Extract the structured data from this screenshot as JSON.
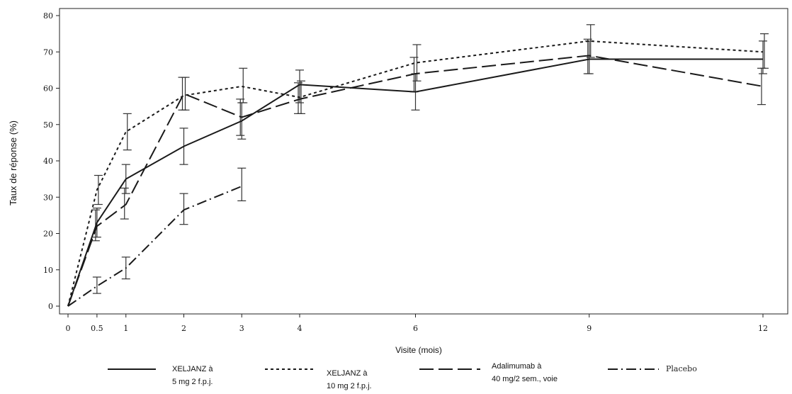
{
  "chart_data": {
    "type": "line",
    "title": "",
    "xlabel": "Visite (mois)",
    "ylabel": "Taux de réponse (%)",
    "xlim": [
      0,
      12.5
    ],
    "ylim": [
      0,
      80
    ],
    "x_ticks": [
      0,
      0.5,
      1,
      2,
      3,
      4,
      6,
      9,
      12
    ],
    "x_tick_labels": [
      "0",
      "0.5",
      "1",
      "2",
      "3",
      "4",
      "6",
      "9",
      "12"
    ],
    "y_ticks": [
      0,
      10,
      20,
      30,
      40,
      50,
      60,
      70,
      80
    ],
    "y_tick_labels": [
      "0",
      "10",
      "20",
      "30",
      "40",
      "50",
      "60",
      "70",
      "80"
    ],
    "grid": false,
    "legend_position": "bottom",
    "series": [
      {
        "name": "XELJANZ à 5 mg 2 f.p.j.",
        "name_lines": [
          "XELJANZ à",
          "5 mg 2 f.p.j."
        ],
        "style": "solid",
        "color": "#1a1a1a",
        "x": [
          0,
          0.5,
          1,
          2,
          3,
          4,
          6,
          9,
          12
        ],
        "y": [
          0,
          23,
          35,
          44,
          51,
          61,
          59,
          68,
          68
        ],
        "err_low": [
          0,
          19,
          31,
          39,
          46,
          56,
          54,
          64,
          64
        ],
        "err_high": [
          0,
          27,
          39,
          49,
          56,
          65,
          64,
          73,
          73
        ]
      },
      {
        "name": "XELJANZ à 10 mg 2 f.p.j.",
        "name_lines": [
          "XELJANZ à",
          "10 mg 2 f.p.j."
        ],
        "style": "dotted",
        "color": "#1a1a1a",
        "x": [
          0,
          0.5,
          1,
          2,
          3,
          4,
          6,
          9,
          12
        ],
        "y": [
          0,
          32,
          48,
          58,
          60.5,
          57.5,
          67,
          73,
          70
        ],
        "err_low": [
          0,
          28,
          43,
          54,
          56,
          53,
          62,
          68.5,
          65.5
        ],
        "err_high": [
          0,
          36,
          53,
          63,
          65.5,
          62,
          72,
          77.5,
          75
        ]
      },
      {
        "name": "Adalimumab à 40 mg/2 sem., voie",
        "name_lines": [
          "Adalimumab à",
          "40 mg/2 sem., voie"
        ],
        "style": "long-dash",
        "color": "#1a1a1a",
        "x": [
          0,
          0.5,
          1,
          2,
          3,
          4,
          6,
          9,
          12
        ],
        "y": [
          0,
          22,
          28,
          58.5,
          52,
          57,
          64,
          69,
          60.5
        ],
        "err_low": [
          0,
          18,
          24,
          54,
          47,
          53,
          59,
          64,
          55.5
        ],
        "err_high": [
          0,
          26.5,
          32.5,
          63,
          57,
          61.5,
          68.5,
          73.5,
          65.5
        ]
      },
      {
        "name": "Placebo",
        "name_lines": [
          "Placebo"
        ],
        "style": "dash-dot",
        "color": "#1a1a1a",
        "x": [
          0,
          0.5,
          1,
          2,
          3
        ],
        "y": [
          0,
          5.5,
          10.5,
          26.5,
          33
        ],
        "err_low": [
          0,
          3.5,
          7.5,
          22.5,
          29
        ],
        "err_high": [
          0,
          8,
          13.5,
          31,
          38
        ]
      }
    ]
  }
}
